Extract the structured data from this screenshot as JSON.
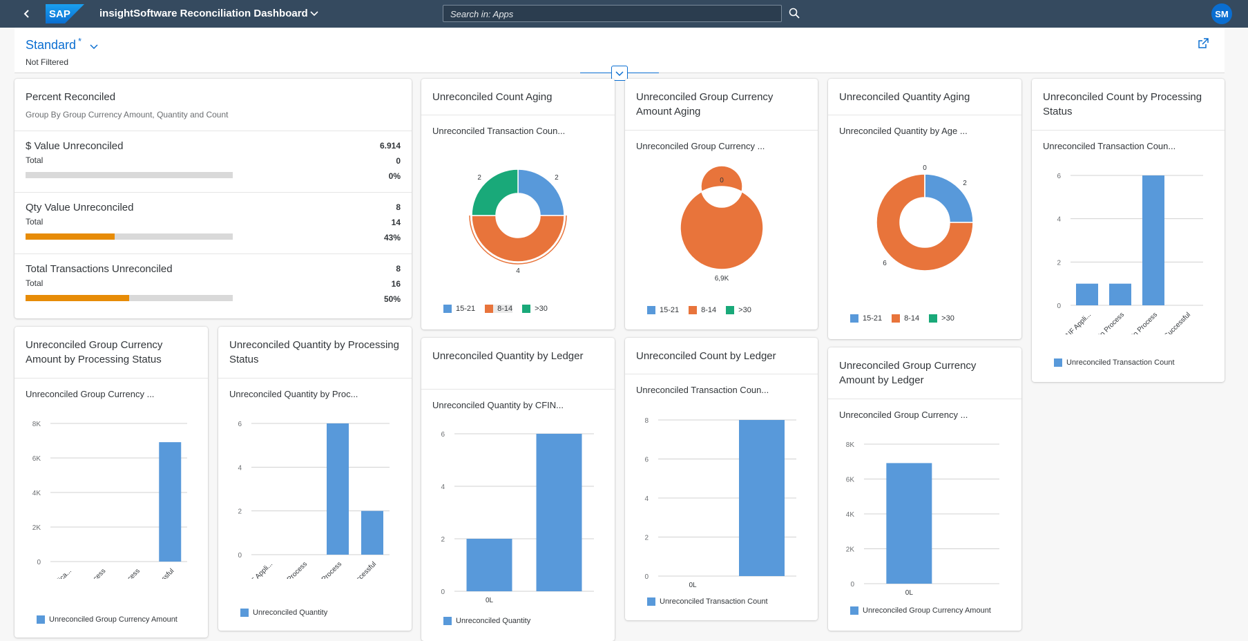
{
  "shell": {
    "app_title": "insightSoftware Reconciliation Dashboard",
    "search_placeholder": "Search in: Apps",
    "avatar": "SM",
    "logo_text": "SAP"
  },
  "header": {
    "variant": "Standard",
    "modified": "*",
    "filter_status": "Not Filtered"
  },
  "colors": {
    "blue": "#5899da",
    "orange": "#e8743b",
    "green": "#19a979",
    "bar_orange": "#e78c07",
    "accent": "#0a6ed1"
  },
  "cards": {
    "percent": {
      "title": "Percent Reconciled",
      "subtitle": "Group By Group Currency Amount, Quantity and Count",
      "kpis": [
        {
          "label": "$ Value Unreconciled",
          "value": "6.914",
          "total_label": "Total",
          "total": "0",
          "percent": "0%",
          "fill": 0
        },
        {
          "label": "Qty Value Unreconciled",
          "value": "8",
          "total_label": "Total",
          "total": "14",
          "percent": "43%",
          "fill": 0.43
        },
        {
          "label": "Total Transactions Unreconciled",
          "value": "8",
          "total_label": "Total",
          "total": "16",
          "percent": "50%",
          "fill": 0.5
        }
      ]
    },
    "count_aging": {
      "title": "Unreconciled Count Aging",
      "subtitle": "Unreconciled Transaction Coun...",
      "chart_data": {
        "type": "pie",
        "donut": true,
        "labels": [
          "15-21",
          "8-14",
          ">30"
        ],
        "values": [
          2,
          4,
          2
        ],
        "data_labels": [
          "2",
          "4",
          "2"
        ],
        "legend": [
          "15-21",
          "8-14",
          ">30"
        ],
        "selected": "8-14"
      }
    },
    "gc_aging": {
      "title": "Unreconciled Group Currency Amount Aging",
      "subtitle": "Unreconciled Group Currency ...",
      "chart_data": {
        "type": "pie",
        "donut": true,
        "labels": [
          "15-21",
          "8-14",
          ">30"
        ],
        "values": [
          0,
          6914,
          0
        ],
        "data_labels": [
          "0",
          "6,9K",
          ""
        ],
        "legend": [
          "15-21",
          "8-14",
          ">30"
        ]
      }
    },
    "qty_aging": {
      "title": "Unreconciled Quantity Aging",
      "subtitle": "Unreconciled Quantity by Age ...",
      "chart_data": {
        "type": "pie",
        "donut": true,
        "labels": [
          "15-21",
          "8-14",
          ">30"
        ],
        "values": [
          2,
          6,
          0
        ],
        "data_labels": [
          "2",
          "6",
          "0"
        ],
        "legend": [
          "15-21",
          "8-14",
          ">30"
        ]
      }
    },
    "count_status": {
      "title": "Unreconciled Count by Processing Status",
      "subtitle": "Unreconciled Transaction Coun...",
      "chart_data": {
        "type": "bar",
        "categories": [
          "AIF Appli...",
          "AIF In Process",
          "In Process",
          "Successful"
        ],
        "values": [
          1,
          1,
          6,
          0
        ],
        "yticks": [
          "0",
          "2",
          "4",
          "6"
        ],
        "ylim": [
          0,
          6
        ],
        "legend": "Unreconciled Transaction Count"
      }
    },
    "gc_status": {
      "title": "Unreconciled Group Currency Amount by Processing Status",
      "subtitle": "Unreconciled Group Currency ...",
      "chart_data": {
        "type": "bar",
        "categories": [
          "AIF Applica...",
          "AIF In Process",
          "In Process",
          "Successful"
        ],
        "values": [
          0,
          0,
          0,
          6914
        ],
        "yticks": [
          "0",
          "2K",
          "4K",
          "6K",
          "8K"
        ],
        "ylim": [
          0,
          8000
        ],
        "legend": "Unreconciled Group Currency Amount"
      }
    },
    "qty_status": {
      "title": "Unreconciled Quantity by Processing Status",
      "subtitle": "Unreconciled Quantity by Proc...",
      "chart_data": {
        "type": "bar",
        "categories": [
          "AIF Appli...",
          "AIF In Process",
          "In Process",
          "Successful"
        ],
        "values": [
          0,
          0,
          6,
          2
        ],
        "yticks": [
          "0",
          "2",
          "4",
          "6"
        ],
        "ylim": [
          0,
          6
        ],
        "legend": "Unreconciled Quantity"
      }
    },
    "qty_ledger": {
      "title": "Unreconciled Quantity by Ledger",
      "subtitle": "Unreconciled Quantity by CFIN...",
      "chart_data": {
        "type": "bar",
        "categories": [
          "0L",
          ""
        ],
        "values": [
          2,
          6
        ],
        "yticks": [
          "0",
          "2",
          "4",
          "6"
        ],
        "ylim": [
          0,
          6
        ],
        "legend": "Unreconciled Quantity"
      }
    },
    "count_ledger": {
      "title": "Unreconciled Count by Ledger",
      "subtitle": "Unreconciled Transaction Coun...",
      "chart_data": {
        "type": "bar",
        "categories": [
          "0L",
          ""
        ],
        "values": [
          0,
          8
        ],
        "yticks": [
          "0",
          "2",
          "4",
          "6",
          "8"
        ],
        "ylim": [
          0,
          8
        ],
        "legend": "Unreconciled Transaction Count"
      }
    },
    "gc_ledger": {
      "title": "Unreconciled Group Currency Amount by Ledger",
      "subtitle": "Unreconciled Group Currency ...",
      "chart_data": {
        "type": "bar",
        "categories": [
          "0L"
        ],
        "values": [
          6914
        ],
        "yticks": [
          "0",
          "2K",
          "4K",
          "6K",
          "8K"
        ],
        "ylim": [
          0,
          8000
        ],
        "legend": "Unreconciled Group Currency Amount"
      }
    }
  }
}
